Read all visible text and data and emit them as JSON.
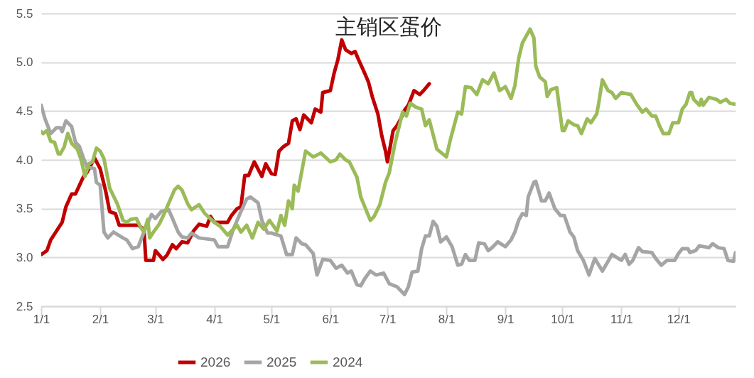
{
  "chart_data": {
    "type": "line",
    "title": "主销区蛋价",
    "xlim": [
      "--01-01",
      "--12-31"
    ],
    "xticks": [
      {
        "value": "--01-01",
        "label": "1/1"
      },
      {
        "value": "--02-01",
        "label": "2/1"
      },
      {
        "value": "--03-01",
        "label": "3/1"
      },
      {
        "value": "--04-01",
        "label": "4/1"
      },
      {
        "value": "--05-01",
        "label": "5/1"
      },
      {
        "value": "--06-01",
        "label": "6/1"
      },
      {
        "value": "--07-01",
        "label": "7/1"
      },
      {
        "value": "--08-01",
        "label": "8/1"
      },
      {
        "value": "--09-01",
        "label": "9/1"
      },
      {
        "value": "--10-01",
        "label": "10/1"
      },
      {
        "value": "--11-01",
        "label": "11/1"
      },
      {
        "value": "--12-01",
        "label": "12/1"
      }
    ],
    "ylim": [
      2.5,
      5.5
    ],
    "yticks": [
      {
        "value": 2.5,
        "label": "2.5"
      },
      {
        "value": 3,
        "label": "3.0"
      },
      {
        "value": 3.5,
        "label": "3.5"
      },
      {
        "value": 4,
        "label": "4.0"
      },
      {
        "value": 4.5,
        "label": "4.5"
      },
      {
        "value": 5,
        "label": "5.0"
      },
      {
        "value": 5.5,
        "label": "5.5"
      }
    ],
    "grid": "y",
    "legend": "bottom",
    "series": [
      {
        "name": "2026",
        "color": "#c00000",
        "x": [
          "--01-01",
          "--01-04",
          "--01-06",
          "--01-09",
          "--01-12",
          "--01-14",
          "--01-17",
          "--01-19",
          "--01-23",
          "--01-25",
          "--01-27",
          "--01-29",
          "--02-01",
          "--02-04",
          "--02-06",
          "--02-09",
          "--02-11",
          "--02-21",
          "--02-24",
          "--02-25",
          "--02-29",
          "--03-01",
          "--03-05",
          "--03-07",
          "--03-10",
          "--03-12",
          "--03-15",
          "--03-18",
          "--03-21",
          "--03-24",
          "--03-28",
          "--03-30",
          "--04-01",
          "--04-08",
          "--04-10",
          "--04-13",
          "--04-15",
          "--04-17",
          "--04-19",
          "--04-22",
          "--04-26",
          "--04-28",
          "--05-01",
          "--05-03",
          "--05-05",
          "--05-07",
          "--05-10",
          "--05-12",
          "--05-14",
          "--05-16",
          "--05-18",
          "--05-22",
          "--05-24",
          "--05-27",
          "--05-28",
          "--06-01",
          "--06-03",
          "--06-05",
          "--06-07",
          "--06-09",
          "--06-12",
          "--06-14",
          "--06-16",
          "--06-19",
          "--06-21",
          "--06-23",
          "--06-26",
          "--06-28",
          "--06-30",
          "--07-01",
          "--07-04",
          "--07-06",
          "--07-08",
          "--07-10",
          "--07-12",
          "--07-15",
          "--07-18",
          "--07-20",
          "--07-23"
        ],
        "values": [
          3.03,
          3.07,
          3.18,
          3.27,
          3.36,
          3.52,
          3.65,
          3.65,
          3.82,
          3.87,
          3.94,
          4.02,
          3.91,
          3.67,
          3.47,
          3.45,
          3.33,
          3.33,
          3.29,
          2.97,
          2.97,
          3.07,
          2.98,
          3.02,
          3.13,
          3.09,
          3.16,
          3.15,
          3.27,
          3.34,
          3.32,
          3.42,
          3.36,
          3.36,
          3.43,
          3.5,
          3.52,
          3.84,
          3.84,
          3.98,
          3.83,
          3.96,
          3.86,
          3.85,
          4.09,
          4.13,
          4.17,
          4.4,
          4.42,
          4.31,
          4.46,
          4.38,
          4.52,
          4.49,
          4.69,
          4.71,
          4.89,
          5.03,
          5.23,
          5.13,
          5.09,
          5.11,
          5.02,
          4.89,
          4.8,
          4.65,
          4.47,
          4.25,
          4.09,
          3.98,
          4.3,
          4.35,
          4.42,
          4.51,
          4.56,
          4.71,
          4.67,
          4.71,
          4.78
        ]
      },
      {
        "name": "2025",
        "color": "#a5a5a5",
        "x": [
          "--01-01",
          "--01-03",
          "--01-06",
          "--01-09",
          "--01-11",
          "--01-12",
          "--01-14",
          "--01-17",
          "--01-19",
          "--01-21",
          "--01-23",
          "--01-25",
          "--01-29",
          "--01-30",
          "--02-01",
          "--02-03",
          "--02-05",
          "--02-08",
          "--02-13",
          "--02-15",
          "--02-18",
          "--02-21",
          "--02-25",
          "--02-28",
          "--03-01",
          "--03-04",
          "--03-08",
          "--03-10",
          "--03-13",
          "--03-15",
          "--03-18",
          "--03-20",
          "--03-24",
          "--04-01",
          "--04-03",
          "--04-08",
          "--04-11",
          "--04-15",
          "--04-18",
          "--04-20",
          "--04-24",
          "--04-26",
          "--04-29",
          "--05-01",
          "--05-06",
          "--05-09",
          "--05-12",
          "--05-14",
          "--05-17",
          "--05-19",
          "--05-23",
          "--05-25",
          "--05-28",
          "--06-01",
          "--06-04",
          "--06-07",
          "--06-10",
          "--06-12",
          "--06-15",
          "--06-17",
          "--06-19",
          "--06-22",
          "--06-25",
          "--06-29",
          "--07-02",
          "--07-06",
          "--07-10",
          "--07-12",
          "--07-14",
          "--07-17",
          "--07-19",
          "--07-21",
          "--07-23",
          "--07-25",
          "--07-27",
          "--07-29",
          "--08-01",
          "--08-04",
          "--08-07",
          "--08-09",
          "--08-11",
          "--08-13",
          "--08-16",
          "--08-18",
          "--08-21",
          "--08-23",
          "--08-25",
          "--08-28",
          "--09-01",
          "--09-04",
          "--09-06",
          "--09-08",
          "--09-10",
          "--09-12",
          "--09-13",
          "--09-16",
          "--09-17",
          "--09-20",
          "--09-22",
          "--09-24",
          "--09-27",
          "--09-30",
          "--10-02",
          "--10-05",
          "--10-07",
          "--10-09",
          "--10-12",
          "--10-15",
          "--10-18",
          "--10-22",
          "--10-25",
          "--10-27",
          "--11-01",
          "--11-03",
          "--11-05",
          "--11-07",
          "--11-10",
          "--11-12",
          "--11-17",
          "--11-19",
          "--11-22",
          "--11-25",
          "--11-29",
          "--12-01",
          "--12-03",
          "--12-06",
          "--12-07",
          "--12-10",
          "--12-12",
          "--12-17",
          "--12-19",
          "--12-22",
          "--12-25",
          "--12-27",
          "--12-30",
          "--12-31"
        ],
        "values": [
          4.56,
          4.42,
          4.27,
          4.33,
          4.33,
          4.29,
          4.4,
          4.34,
          4.18,
          4.14,
          4.03,
          3.93,
          3.91,
          3.77,
          3.74,
          3.26,
          3.2,
          3.26,
          3.2,
          3.18,
          3.09,
          3.11,
          3.31,
          3.44,
          3.4,
          3.47,
          3.49,
          3.4,
          3.26,
          3.21,
          3.2,
          3.25,
          3.2,
          3.18,
          3.11,
          3.11,
          3.29,
          3.47,
          3.6,
          3.62,
          3.56,
          3.38,
          3.25,
          3.25,
          3.22,
          3.03,
          3.03,
          3.2,
          3.14,
          3.13,
          3.04,
          2.82,
          2.98,
          2.97,
          2.89,
          2.92,
          2.84,
          2.86,
          2.72,
          2.71,
          2.78,
          2.86,
          2.82,
          2.84,
          2.73,
          2.7,
          2.62,
          2.7,
          2.85,
          2.86,
          3.09,
          3.22,
          3.22,
          3.37,
          3.32,
          3.16,
          3.21,
          3.11,
          2.92,
          2.93,
          3.03,
          2.97,
          2.97,
          3.15,
          3.14,
          3.07,
          3.1,
          3.16,
          3.11,
          3.18,
          3.26,
          3.38,
          3.45,
          3.43,
          3.62,
          3.77,
          3.78,
          3.58,
          3.58,
          3.66,
          3.5,
          3.43,
          3.43,
          3.26,
          3.21,
          3.07,
          2.97,
          2.82,
          2.99,
          2.86,
          2.96,
          3.03,
          2.97,
          3.03,
          2.93,
          2.97,
          3.1,
          3.06,
          3.05,
          2.99,
          2.92,
          2.97,
          2.97,
          3.04,
          3.09,
          3.09,
          3.05,
          3.07,
          3.12,
          3.1,
          3.14,
          3.1,
          3.09,
          2.97,
          2.96,
          3.05
        ]
      },
      {
        "name": "2024",
        "color": "#9bbb59",
        "x": [
          "--01-01",
          "--01-02",
          "--01-04",
          "--01-06",
          "--01-08",
          "--01-10",
          "--01-11",
          "--01-13",
          "--01-15",
          "--01-17",
          "--01-20",
          "--01-22",
          "--01-24",
          "--01-26",
          "--01-28",
          "--01-30",
          "--02-01",
          "--02-03",
          "--02-06",
          "--02-08",
          "--02-10",
          "--02-13",
          "--02-15",
          "--02-17",
          "--02-20",
          "--02-22",
          "--02-24",
          "--02-26",
          "--02-27",
          "--02-29",
          "--03-03",
          "--03-05",
          "--03-09",
          "--03-11",
          "--03-13",
          "--03-15",
          "--03-18",
          "--03-20",
          "--03-24",
          "--03-27",
          "--04-01",
          "--04-04",
          "--04-08",
          "--04-11",
          "--04-13",
          "--04-15",
          "--04-18",
          "--04-21",
          "--04-24",
          "--04-27",
          "--04-30",
          "--05-04",
          "--05-06",
          "--05-08",
          "--05-10",
          "--05-12",
          "--05-13",
          "--05-15",
          "--05-19",
          "--05-23",
          "--05-27",
          "--06-01",
          "--06-04",
          "--06-06",
          "--06-09",
          "--06-11",
          "--06-15",
          "--06-17",
          "--06-22",
          "--06-24",
          "--06-27",
          "--06-30",
          "--07-02",
          "--07-05",
          "--07-09",
          "--07-11",
          "--07-13",
          "--07-16",
          "--07-19",
          "--07-21",
          "--07-23",
          "--07-27",
          "--08-01",
          "--08-03",
          "--08-07",
          "--08-09",
          "--08-11",
          "--08-14",
          "--08-17",
          "--08-20",
          "--08-23",
          "--08-26",
          "--08-29",
          "--09-01",
          "--09-04",
          "--09-06",
          "--09-08",
          "--09-10",
          "--09-14",
          "--09-16",
          "--09-17",
          "--09-19",
          "--09-22",
          "--09-23",
          "--09-25",
          "--09-28",
          "--10-01",
          "--10-02",
          "--10-04",
          "--10-07",
          "--10-09",
          "--10-11",
          "--10-14",
          "--10-16",
          "--10-19",
          "--10-20",
          "--10-22",
          "--10-25",
          "--10-27",
          "--10-29",
          "--11-01",
          "--11-06",
          "--11-09",
          "--11-12",
          "--11-14",
          "--11-17",
          "--11-19",
          "--11-21",
          "--11-23",
          "--11-26",
          "--11-28",
          "--12-01",
          "--12-03",
          "--12-05",
          "--12-07",
          "--12-08",
          "--12-09",
          "--12-12",
          "--12-13",
          "--12-14",
          "--12-17",
          "--12-21",
          "--12-23",
          "--12-26",
          "--12-28",
          "--12-31"
        ],
        "values": [
          4.29,
          4.27,
          4.3,
          4.19,
          4.18,
          4.06,
          4.06,
          4.13,
          4.27,
          4.17,
          4.11,
          4.0,
          3.83,
          3.96,
          3.98,
          4.12,
          4.09,
          4.01,
          3.71,
          3.63,
          3.55,
          3.38,
          3.36,
          3.39,
          3.4,
          3.32,
          3.26,
          3.39,
          3.2,
          3.26,
          3.34,
          3.42,
          3.6,
          3.69,
          3.73,
          3.69,
          3.55,
          3.49,
          3.54,
          3.45,
          3.36,
          3.32,
          3.23,
          3.29,
          3.33,
          3.26,
          3.33,
          3.2,
          3.36,
          3.29,
          3.38,
          3.27,
          3.43,
          3.33,
          3.58,
          3.5,
          3.74,
          3.68,
          4.09,
          4.03,
          4.07,
          3.98,
          4.0,
          4.06,
          4.0,
          3.98,
          3.82,
          3.62,
          3.38,
          3.42,
          3.54,
          3.77,
          3.87,
          4.17,
          4.49,
          4.45,
          4.58,
          4.54,
          4.52,
          4.35,
          4.41,
          4.11,
          4.03,
          4.2,
          4.49,
          4.47,
          4.75,
          4.74,
          4.67,
          4.82,
          4.78,
          4.89,
          4.71,
          4.75,
          4.63,
          4.76,
          5.04,
          5.2,
          5.34,
          5.25,
          4.96,
          4.85,
          4.8,
          4.65,
          4.72,
          4.74,
          4.3,
          4.3,
          4.4,
          4.36,
          4.35,
          4.27,
          4.42,
          4.38,
          4.47,
          4.57,
          4.82,
          4.71,
          4.69,
          4.63,
          4.69,
          4.67,
          4.57,
          4.49,
          4.52,
          4.45,
          4.45,
          4.35,
          4.27,
          4.27,
          4.38,
          4.38,
          4.52,
          4.57,
          4.69,
          4.69,
          4.62,
          4.56,
          4.62,
          4.56,
          4.64,
          4.62,
          4.59,
          4.62,
          4.58,
          4.57
        ]
      }
    ]
  }
}
